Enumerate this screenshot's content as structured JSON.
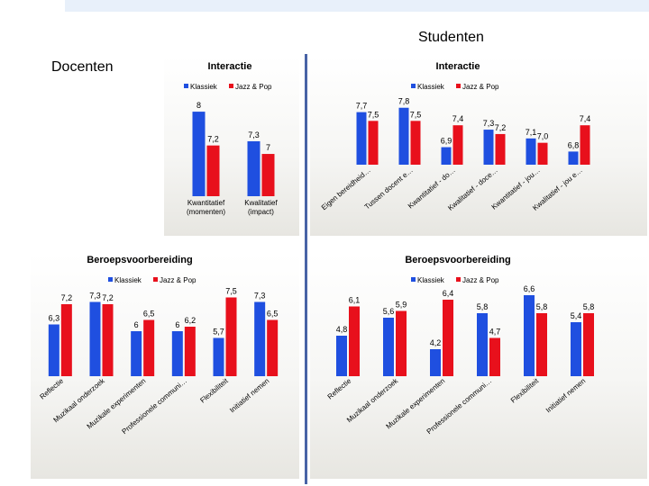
{
  "page": {
    "title": "Studenten",
    "subtitle": "Docenten"
  },
  "colors": {
    "klassiek": "#1f4fe0",
    "jazz_pop": "#e8101c"
  },
  "chart_data": [
    {
      "id": "interactie-docenten",
      "type": "bar",
      "title": "Interactie",
      "categories": [
        "Kwantitatief\n(momenten)",
        "Kwalitatief\n(impact)"
      ],
      "series": [
        {
          "name": "Klassiek",
          "values": [
            8,
            7.3
          ],
          "labels": [
            "8",
            "7,3"
          ]
        },
        {
          "name": "Jazz & Pop",
          "values": [
            7.2,
            7
          ],
          "labels": [
            "7,2",
            "7"
          ]
        }
      ],
      "legend": "top",
      "label_rotation": 0,
      "ylim": [
        6,
        8.3
      ]
    },
    {
      "id": "interactie-studenten",
      "type": "bar",
      "title": "Interactie",
      "categories": [
        "Eigen bereidheid…",
        "Tussen docent e…",
        "Kwantitatief - do…",
        "Kwalitatief - doce…",
        "Kwantitatief - jou…",
        "Kwalitatief - jou e…"
      ],
      "series": [
        {
          "name": "Klassiek",
          "values": [
            7.7,
            7.8,
            6.9,
            7.3,
            7.1,
            6.8
          ],
          "labels": [
            "7,7",
            "7,8",
            "6,9",
            "7,3",
            "7,1",
            "6,8"
          ]
        },
        {
          "name": "Jazz & Pop",
          "values": [
            7.5,
            7.5,
            7.4,
            7.2,
            7.0,
            7.4
          ],
          "labels": [
            "7,5",
            "7,5",
            "7,4",
            "7,2",
            "7,0",
            "7,4"
          ]
        }
      ],
      "legend": "top-right",
      "label_rotation": -40,
      "ylim": [
        6.5,
        8
      ]
    },
    {
      "id": "beroepsvoorbereiding-docenten",
      "type": "bar",
      "title": "Beroepsvoorbereiding",
      "categories": [
        "Reflectie",
        "Muzikaal onderzoek",
        "Muzikale experimenten",
        "Professionele communi…",
        "Flexibiliteit",
        "Initiatief nemen"
      ],
      "series": [
        {
          "name": "Klassiek",
          "values": [
            6.3,
            7.3,
            6,
            6,
            5.7,
            7.3
          ],
          "labels": [
            "6,3",
            "7,3",
            "6",
            "6",
            "5,7",
            "7,3"
          ]
        },
        {
          "name": "Jazz & Pop",
          "values": [
            7.2,
            7.2,
            6.5,
            6.2,
            7.5,
            6.5
          ],
          "labels": [
            "7,2",
            "7,2",
            "6,5",
            "6,2",
            "7,5",
            "6,5"
          ]
        }
      ],
      "legend": "top",
      "label_rotation": -40,
      "ylim": [
        4,
        8
      ]
    },
    {
      "id": "beroepsvoorbereiding-studenten",
      "type": "bar",
      "title": "Beroepsvoorbereiding",
      "categories": [
        "Reflectie",
        "Muzikaal onderzoek",
        "Muzikale experimenten",
        "Professionele communi…",
        "Flexibiliteit",
        "Initiatief nemen"
      ],
      "series": [
        {
          "name": "Klassiek",
          "values": [
            4.8,
            5.6,
            4.2,
            5.8,
            6.6,
            5.4
          ],
          "labels": [
            "4,8",
            "5,6",
            "4,2",
            "5,8",
            "6,6",
            "5,4"
          ]
        },
        {
          "name": "Jazz & Pop",
          "values": [
            6.1,
            5.9,
            6.4,
            4.7,
            5.8,
            5.8
          ],
          "labels": [
            "6,1",
            "5,9",
            "6,4",
            "4,7",
            "5,8",
            "5,8"
          ]
        }
      ],
      "legend": "top-right",
      "label_rotation": -40,
      "ylim": [
        3,
        7
      ]
    }
  ]
}
